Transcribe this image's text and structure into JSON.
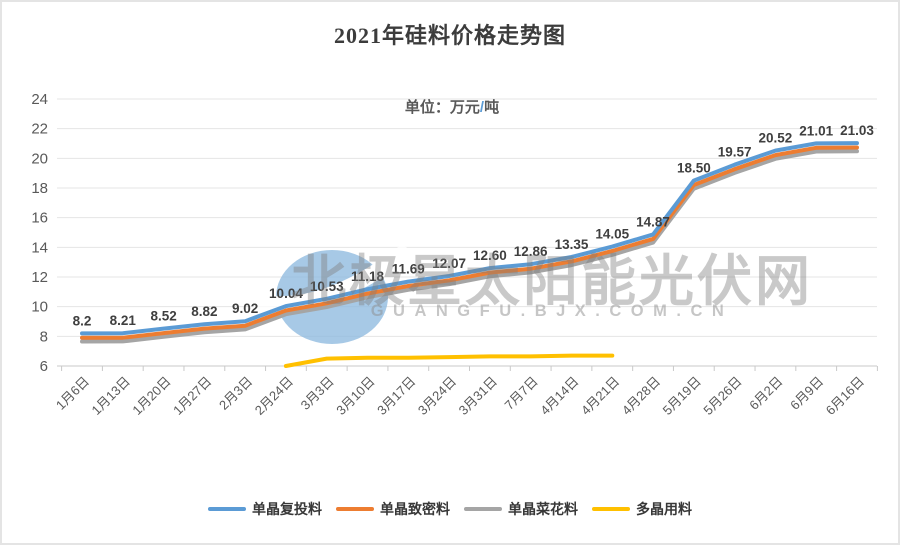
{
  "page": {
    "title": "2021年硅料价格走势图"
  },
  "watermark": {
    "main": "北极星太阳能光伏网",
    "sub": "GUANGFU.BJX.COM.CN",
    "logo": "bjx-logo-icon"
  },
  "colors": {
    "blue": "#5B9BD5",
    "orange": "#ED7D31",
    "gray": "#A5A5A5",
    "yellow": "#FFC000",
    "grid": "#E5E5E5",
    "axis": "#C9C9C9",
    "tick_text": "#595959",
    "label_text": "#3F3F3F",
    "title_text": "#3C3C3C",
    "watermark_text": "#7F7F7F",
    "watermark_sub_text": "#8F8F8F",
    "logo_blue": "#92BCE0"
  },
  "chart_data": {
    "type": "line",
    "title": "2021年硅料价格走势图",
    "unit_label": "单位：万元/吨",
    "ylim": [
      6,
      24
    ],
    "ytick_step": 2,
    "grid": true,
    "legend_position": "bottom",
    "categories": [
      "1月6日",
      "1月13日",
      "1月20日",
      "1月27日",
      "2月3日",
      "2月24日",
      "3月3日",
      "3月10日",
      "3月17日",
      "3月24日",
      "3月31日",
      "7月7日",
      "4月14日",
      "4月21日",
      "4月28日",
      "5月19日",
      "5月26日",
      "6月2日",
      "6月9日",
      "6月16日"
    ],
    "series": [
      {
        "name": "单晶复投料",
        "color": "#5B9BD5",
        "values": [
          8.2,
          8.21,
          8.52,
          8.82,
          9.02,
          10.04,
          10.53,
          11.18,
          11.69,
          12.07,
          12.6,
          12.86,
          13.35,
          14.05,
          14.87,
          18.5,
          19.57,
          20.52,
          21.01,
          21.03
        ],
        "data_labels": [
          "8.2",
          "8.21",
          "8.52",
          "8.82",
          "9.02",
          "10.04",
          "10.53",
          "11.18",
          "11.69",
          "12.07",
          "12.60",
          "12.86",
          "13.35",
          "14.05",
          "14.87",
          "18.50",
          "19.57",
          "20.52",
          "21.01",
          "21.03"
        ]
      },
      {
        "name": "单晶致密料",
        "color": "#ED7D31",
        "values": [
          7.9,
          7.91,
          8.22,
          8.52,
          8.72,
          9.74,
          10.23,
          10.88,
          11.39,
          11.77,
          12.3,
          12.56,
          13.05,
          13.75,
          14.57,
          18.2,
          19.27,
          20.22,
          20.71,
          20.73
        ]
      },
      {
        "name": "单晶菜花料",
        "color": "#A5A5A5",
        "values": [
          7.65,
          7.66,
          7.97,
          8.27,
          8.47,
          9.49,
          9.98,
          10.63,
          11.14,
          11.52,
          12.05,
          12.31,
          12.8,
          13.5,
          14.32,
          17.95,
          19.02,
          19.97,
          20.46,
          20.48
        ]
      },
      {
        "name": "多晶用料",
        "color": "#FFC000",
        "values": [
          null,
          null,
          null,
          null,
          null,
          6.0,
          6.5,
          6.55,
          6.55,
          6.6,
          6.65,
          6.65,
          6.7,
          6.7,
          null,
          null,
          null,
          null,
          null,
          null
        ]
      }
    ]
  }
}
